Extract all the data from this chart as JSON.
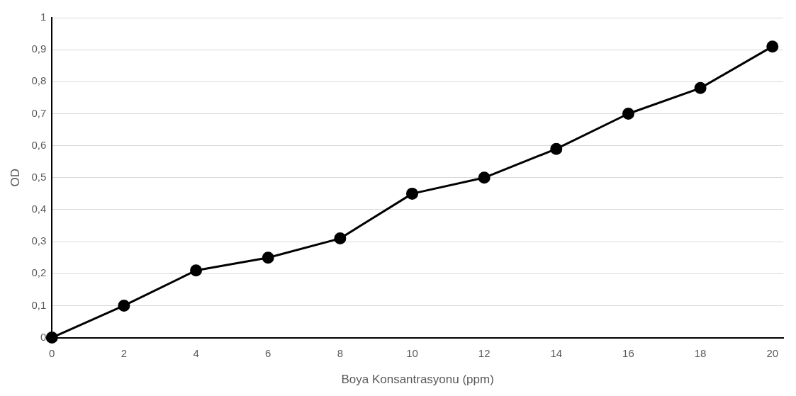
{
  "chart_data": {
    "type": "line",
    "xlabel": "Boya Konsantrasyonu (ppm)",
    "ylabel": "OD",
    "x": [
      0,
      2,
      4,
      6,
      8,
      10,
      12,
      14,
      16,
      18,
      20
    ],
    "series": [
      {
        "color": "#000000",
        "values": [
          0,
          0.1,
          0.21,
          0.25,
          0.31,
          0.45,
          0.5,
          0.59,
          0.7,
          0.78,
          0.91
        ]
      }
    ],
    "xlim": [
      0,
      20.3
    ],
    "xticks": [
      0,
      2,
      4,
      6,
      8,
      10,
      12,
      14,
      16,
      18,
      20
    ],
    "ylim": [
      0,
      1
    ],
    "yticks": [
      0,
      {
        "value": 0.1,
        "label": "0,1"
      },
      {
        "value": 0.2,
        "label": "0,2"
      },
      {
        "value": 0.3,
        "label": "0,3"
      },
      {
        "value": 0.4,
        "label": "0,4"
      },
      {
        "value": 0.5,
        "label": "0,5"
      },
      {
        "value": 0.6,
        "label": "0,6"
      },
      {
        "value": 0.7,
        "label": "0,7"
      },
      {
        "value": 0.8,
        "label": "0,8"
      },
      {
        "value": 0.9,
        "label": "0,9"
      },
      1
    ],
    "grid": "y",
    "marker": "circle",
    "line_style": "solid"
  }
}
